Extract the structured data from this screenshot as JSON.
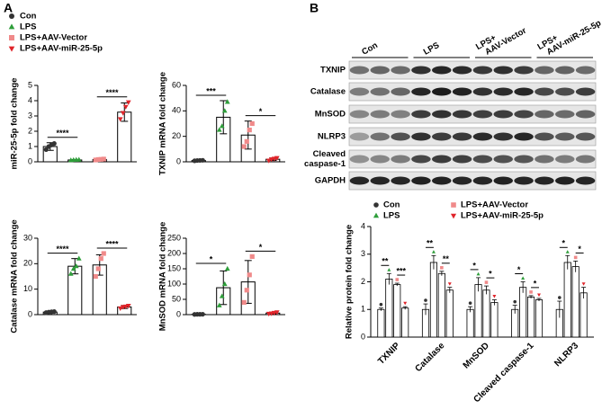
{
  "panel_labels": [
    "A",
    "B"
  ],
  "groups": [
    {
      "name": "Con",
      "color": "#333333",
      "marker": "circle"
    },
    {
      "name": "LPS",
      "color": "#2e9e3a",
      "marker": "triangle"
    },
    {
      "name": "LPS+AAV-Vector",
      "color": "#f08a8a",
      "marker": "square"
    },
    {
      "name": "LPS+AAV-miR-25-5p",
      "color": "#e0242a",
      "marker": "triangle-down"
    }
  ],
  "blot": {
    "columns": [
      [
        "Con"
      ],
      [
        "LPS"
      ],
      [
        "LPS+",
        "AAV-Vector"
      ],
      [
        "LPS+",
        "AAV-miR-25-5p"
      ]
    ],
    "rows": [
      [
        "TXNIP"
      ],
      [
        "Catalase"
      ],
      [
        "MnSOD"
      ],
      [
        "NLRP3"
      ],
      [
        "Cleaved",
        "caspase-1"
      ],
      [
        "GAPDH"
      ]
    ]
  },
  "chart_data": [
    {
      "type": "bar",
      "ylabel": "miR-25-5p fold change",
      "ylim": [
        0,
        5
      ],
      "yticks": [
        0,
        1,
        2,
        3,
        4,
        5
      ],
      "values": [
        1.0,
        0.12,
        0.15,
        3.25
      ],
      "errors": [
        0.25,
        0.02,
        0.03,
        0.6
      ],
      "points": [
        [
          0.8,
          1.0,
          1.1,
          1.2
        ],
        [
          0.1,
          0.12,
          0.13,
          0.14
        ],
        [
          0.12,
          0.15,
          0.16,
          0.18
        ],
        [
          2.8,
          3.2,
          3.6,
          3.9
        ]
      ],
      "significance": [
        {
          "label": "****",
          "groups": [
            0,
            1
          ]
        },
        {
          "label": "****",
          "groups": [
            2,
            3
          ]
        }
      ]
    },
    {
      "type": "bar",
      "ylabel": "TXNIP mRNA fold change",
      "ylim": [
        0,
        60
      ],
      "yticks": [
        0,
        20,
        40,
        60
      ],
      "values": [
        1,
        35,
        21,
        2
      ],
      "errors": [
        0.3,
        13,
        11,
        1
      ],
      "points": [
        [
          0.8,
          1,
          1.1,
          1.2
        ],
        [
          25,
          28,
          40,
          47
        ],
        [
          12,
          16,
          25,
          30
        ],
        [
          1,
          2,
          2.5,
          3
        ]
      ],
      "significance": [
        {
          "label": "***",
          "groups": [
            0,
            1
          ]
        },
        {
          "label": "*",
          "groups": [
            2,
            3
          ]
        }
      ]
    },
    {
      "type": "bar",
      "ylabel": "Catalase mRNA fold change",
      "ylim": [
        0,
        30
      ],
      "yticks": [
        0,
        10,
        20,
        30
      ],
      "values": [
        1,
        19,
        19.5,
        3
      ],
      "errors": [
        0.2,
        3,
        4,
        0.6
      ],
      "points": [
        [
          0.8,
          1,
          1.1,
          1.2
        ],
        [
          16,
          18,
          19,
          22
        ],
        [
          15,
          18,
          22,
          24
        ],
        [
          2.5,
          3,
          3.2,
          3.5
        ]
      ],
      "significance": [
        {
          "label": "****",
          "groups": [
            0,
            1
          ]
        },
        {
          "label": "****",
          "groups": [
            2,
            3
          ]
        }
      ]
    },
    {
      "type": "bar",
      "ylabel": "MnSOD mRNA fold change",
      "ylim": [
        0,
        250
      ],
      "yticks": [
        0,
        50,
        100,
        150,
        200,
        250
      ],
      "values": [
        1,
        88,
        107,
        5
      ],
      "errors": [
        0.5,
        55,
        70,
        3
      ],
      "points": [
        [
          0.8,
          1,
          1.1,
          1.2
        ],
        [
          30,
          60,
          100,
          150
        ],
        [
          40,
          80,
          130,
          190
        ],
        [
          3,
          4,
          6,
          8
        ]
      ],
      "significance": [
        {
          "label": "*",
          "groups": [
            0,
            1
          ]
        },
        {
          "label": "*",
          "groups": [
            2,
            3
          ]
        }
      ]
    },
    {
      "type": "grouped_bar",
      "ylabel": "Relative protein fold change",
      "ylim": [
        0,
        4
      ],
      "yticks": [
        0,
        1,
        2,
        3,
        4
      ],
      "categories": [
        "TXNIP",
        "Catalase",
        "MnSOD",
        "Cleaved caspase-1",
        "NLRP3"
      ],
      "series": [
        {
          "name": "Con",
          "color": "#333333",
          "marker": "circle",
          "values": [
            1.0,
            1.0,
            1.0,
            1.0,
            1.0
          ],
          "errors": [
            0.05,
            0.2,
            0.1,
            0.15,
            0.3
          ]
        },
        {
          "name": "LPS",
          "color": "#2e9e3a",
          "marker": "triangle",
          "values": [
            2.1,
            2.7,
            1.9,
            1.8,
            2.7
          ],
          "errors": [
            0.2,
            0.25,
            0.25,
            0.2,
            0.25
          ]
        },
        {
          "name": "LPS+AAV-Vector",
          "color": "#f08a8a",
          "marker": "square",
          "values": [
            1.9,
            2.3,
            1.7,
            1.45,
            2.55
          ],
          "errors": [
            0.05,
            0.08,
            0.15,
            0.05,
            0.2
          ]
        },
        {
          "name": "LPS+AAV-miR-25-5p",
          "color": "#e0242a",
          "marker": "triangle-down",
          "values": [
            1.05,
            1.7,
            1.25,
            1.35,
            1.6
          ],
          "errors": [
            0.05,
            0.1,
            0.1,
            0.05,
            0.2
          ]
        }
      ],
      "significance": [
        [
          {
            "label": "**",
            "groups": [
              0,
              1
            ]
          },
          {
            "label": "***",
            "groups": [
              2,
              3
            ]
          }
        ],
        [
          {
            "label": "**",
            "groups": [
              0,
              1
            ]
          },
          {
            "label": "**",
            "groups": [
              2,
              3
            ]
          }
        ],
        [
          {
            "label": "*",
            "groups": [
              0,
              1
            ]
          },
          {
            "label": "*",
            "groups": [
              2,
              3
            ]
          }
        ],
        [
          {
            "label": "*",
            "groups": [
              0,
              1
            ]
          },
          {
            "label": "*",
            "groups": [
              2,
              3
            ]
          }
        ],
        [
          {
            "label": "*",
            "groups": [
              0,
              1
            ]
          },
          {
            "label": "*",
            "groups": [
              2,
              3
            ]
          }
        ]
      ]
    }
  ]
}
